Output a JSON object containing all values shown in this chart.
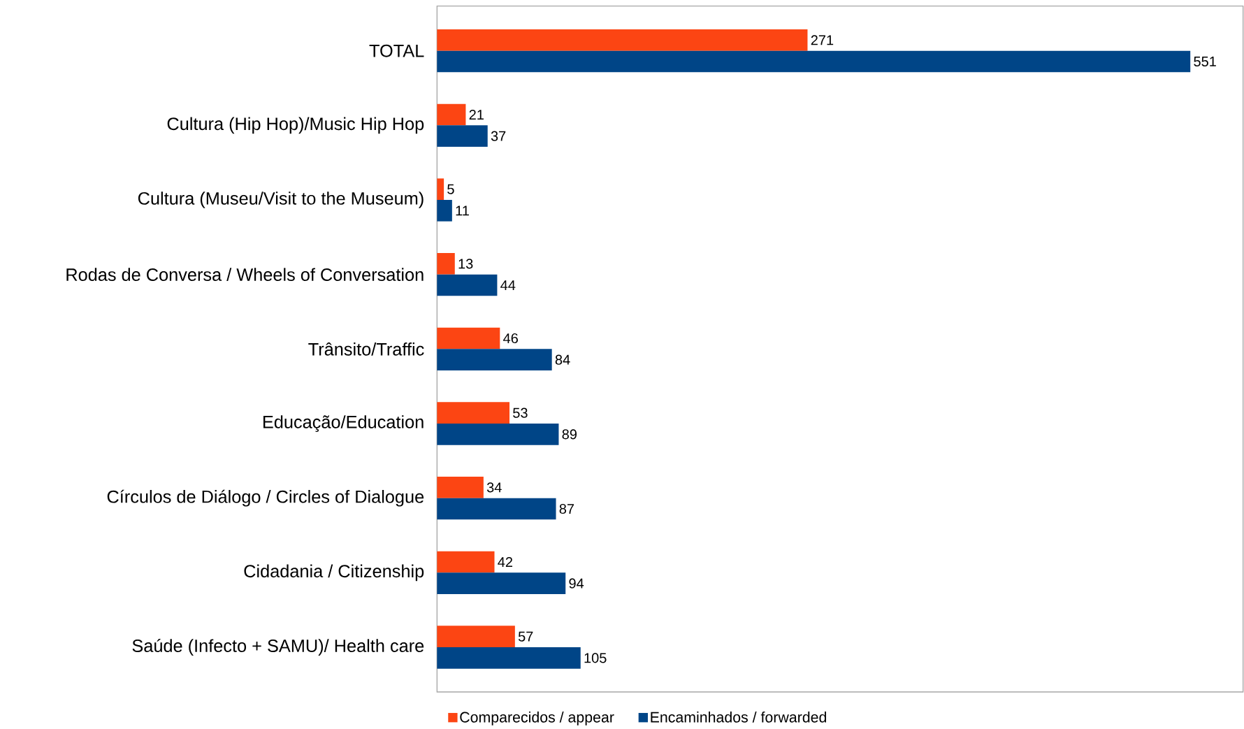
{
  "chart_data": {
    "type": "bar",
    "orientation": "horizontal",
    "categories": [
      "TOTAL",
      "Cultura (Hip Hop)/Music Hip Hop",
      "Cultura (Museu/Visit to the Museum)",
      "Rodas de Conversa / Wheels of Conversation",
      "Trânsito/Traffic",
      "Educação/Education",
      "Círculos de Diálogo / Circles of Dialogue",
      "Cidadania / Citizenship",
      "Saúde (Infecto + SAMU)/ Health care"
    ],
    "series": [
      {
        "name": "Comparecidos / appear",
        "color": "#fc4513",
        "values": [
          271,
          21,
          5,
          13,
          46,
          53,
          34,
          42,
          57
        ]
      },
      {
        "name": "Encaminhados / forwarded",
        "color": "#004587",
        "values": [
          551,
          37,
          11,
          44,
          84,
          89,
          87,
          94,
          105
        ]
      }
    ],
    "data_labels": true,
    "legend": "bottom"
  }
}
